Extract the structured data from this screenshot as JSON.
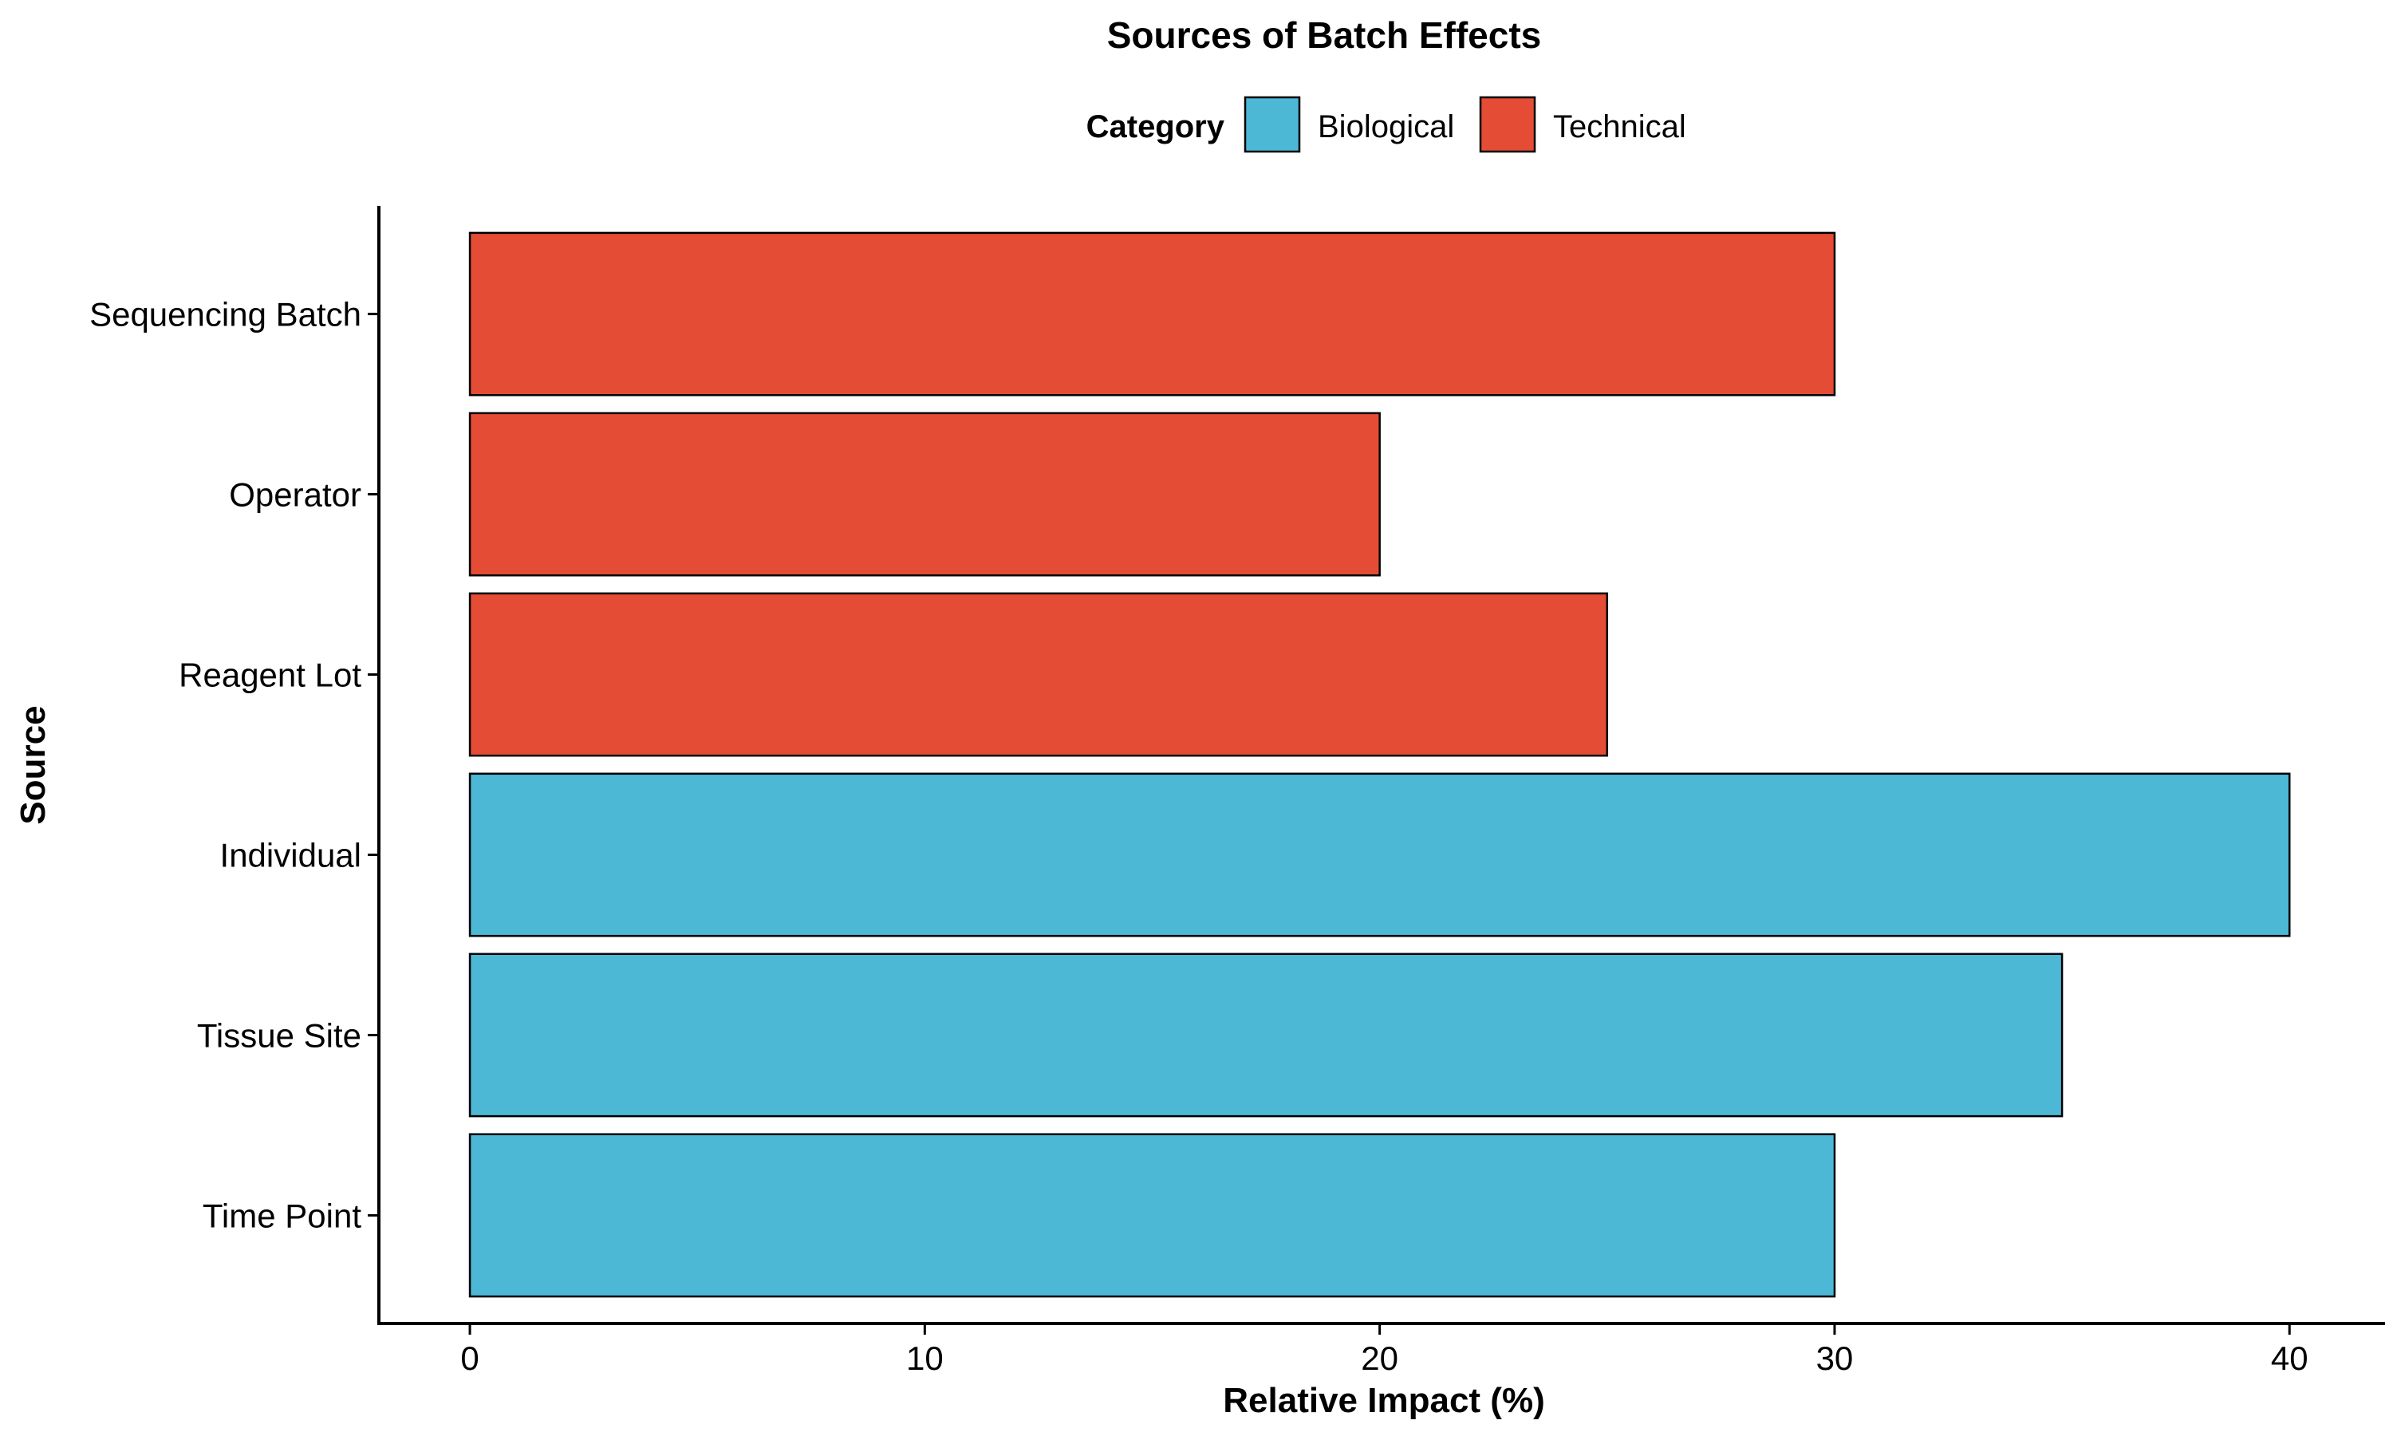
{
  "chart_data": {
    "type": "bar",
    "orientation": "horizontal",
    "title": "Sources of Batch Effects",
    "xlabel": "Relative Impact (%)",
    "ylabel": "Source",
    "categories": [
      "Time Point",
      "Tissue Site",
      "Individual",
      "Reagent Lot",
      "Operator",
      "Sequencing Batch"
    ],
    "values": [
      30,
      35,
      40,
      25,
      20,
      30
    ],
    "groups": [
      "Biological",
      "Biological",
      "Biological",
      "Technical",
      "Technical",
      "Technical"
    ],
    "x_ticks": [
      "0",
      "10",
      "20",
      "30",
      "40"
    ],
    "xlim": [
      -2,
      42.1
    ],
    "grid": false,
    "legend": {
      "title": "Category",
      "position": "top",
      "entries": [
        {
          "label": "Biological",
          "color": "#4DB8D6"
        },
        {
          "label": "Technical",
          "color": "#E54C35"
        }
      ]
    }
  }
}
